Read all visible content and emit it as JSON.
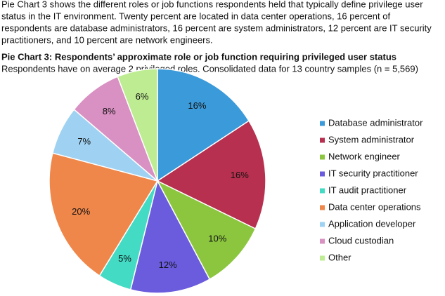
{
  "intro": [
    "Pie Chart 3 shows the different roles or job functions respondents held that typically define privilege user",
    "status in the IT environment. Twenty percent are located in data center operations, 16 percent of",
    "respondents are database administrators, 16 percent are system administrators, 12 percent are IT security",
    "practitioners, and 10 percent are network engineers."
  ],
  "chart_data": {
    "type": "pie",
    "title": "Pie Chart 3: Respondents’ approximate role or job function requiring privileged user status",
    "subtitle": "Respondents have on average 2 privileged roles. Consolidated data for 13 country samples (n = 5,569)",
    "categories": [
      "Database administrator",
      "System administrator",
      "Network engineer",
      "IT security practitioner",
      "IT audit practitioner",
      "Data center operations",
      "Application developer",
      "Cloud custodian",
      "Other"
    ],
    "values": [
      16,
      16,
      10,
      12,
      5,
      20,
      7,
      8,
      6
    ],
    "value_labels": [
      "16%",
      "16%",
      "10%",
      "12%",
      "5%",
      "20%",
      "7%",
      "8%",
      "6%"
    ],
    "colors": [
      "#3b9ad9",
      "#b7304f",
      "#8cc63f",
      "#6a5cdc",
      "#43dbc4",
      "#f0874a",
      "#9fd2f2",
      "#d990c2",
      "#bdec92"
    ],
    "legend": "right"
  }
}
